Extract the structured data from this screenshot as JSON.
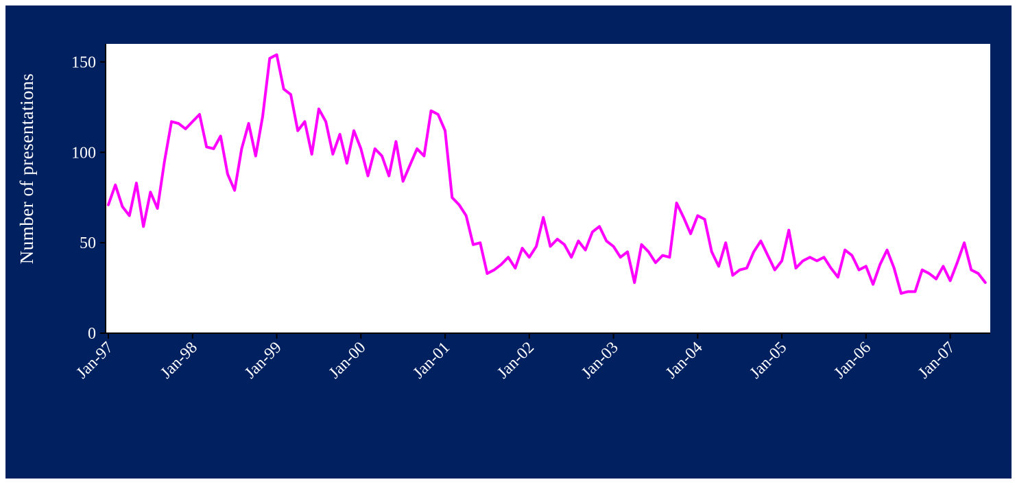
{
  "colors": {
    "background": "#012060",
    "plot_area": "#ffffff",
    "line": "#ff00ff",
    "axis_text": "#ffffff"
  },
  "chart_data": {
    "type": "line",
    "title": "",
    "xlabel": "",
    "ylabel": "Number of presentations",
    "ylim": [
      0,
      160
    ],
    "y_ticks": [
      0,
      50,
      100,
      150
    ],
    "x_ticks": [
      "Jan-97",
      "Jan-98",
      "Jan-99",
      "Jan-00",
      "Jan-01",
      "Jan-02",
      "Jan-03",
      "Jan-04",
      "Jan-05",
      "Jan-06",
      "Jan-07"
    ],
    "x_start": "Jan-97",
    "x_interval": "month",
    "grid": false,
    "legend": "none",
    "series": [
      {
        "values": [
          71,
          82,
          70,
          65,
          83,
          59,
          78,
          69,
          95,
          117,
          116,
          113,
          117,
          121,
          103,
          102,
          109,
          88,
          79,
          102,
          116,
          98,
          120,
          152,
          154,
          135,
          132,
          112,
          117,
          99,
          124,
          117,
          99,
          110,
          94,
          112,
          102,
          87,
          102,
          98,
          87,
          106,
          84,
          93,
          102,
          98,
          123,
          121,
          112,
          75,
          71,
          65,
          49,
          50,
          33,
          35,
          38,
          42,
          36,
          47,
          42,
          48,
          64,
          48,
          52,
          49,
          42,
          51,
          46,
          56,
          59,
          51,
          48,
          42,
          45,
          28,
          49,
          45,
          39,
          43,
          42,
          72,
          64,
          55,
          65,
          63,
          45,
          37,
          50,
          32,
          35,
          36,
          45,
          51,
          43,
          35,
          40,
          57,
          36,
          40,
          42,
          40,
          42,
          36,
          31,
          46,
          43,
          35,
          37,
          27,
          38,
          46,
          36,
          22,
          23,
          23,
          35,
          33,
          30,
          37,
          29,
          39,
          50,
          35,
          33,
          28
        ]
      }
    ]
  }
}
